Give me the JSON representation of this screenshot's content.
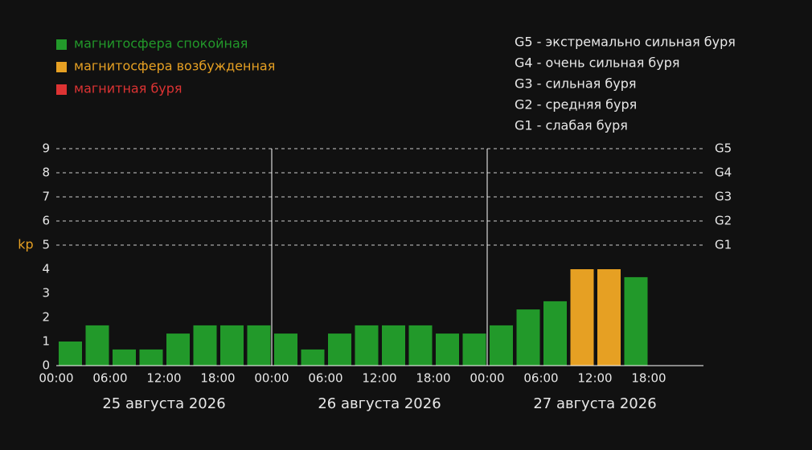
{
  "chart_data": {
    "type": "bar",
    "y_label": "kp",
    "y_label_color": "#e6a023",
    "legend": [
      {
        "name": "магнитосфера спокойная",
        "color": "#22992a"
      },
      {
        "name": "магнитосфера возбужденная",
        "color": "#e6a023"
      },
      {
        "name": "магнитная буря",
        "color": "#dd3333"
      }
    ],
    "storm_legend": [
      "G5 - экстремально сильная буря",
      "G4 - очень сильная буря",
      "G3 - сильная буря",
      "G2 - средняя буря",
      "G1 - слабая буря"
    ],
    "days": [
      "25 августа 2026",
      "26 августа 2026",
      "27 августа 2026"
    ],
    "time_labels": [
      "00:00",
      "06:00",
      "12:00",
      "18:00"
    ],
    "values": [
      1,
      1.67,
      0.67,
      0.67,
      1.33,
      1.67,
      1.67,
      1.67,
      1.33,
      0.67,
      1.33,
      1.67,
      1.67,
      1.67,
      1.33,
      1.33,
      1.67,
      2.33,
      2.67,
      4,
      4,
      3.67,
      null,
      null
    ],
    "bar_levels": [
      0,
      0,
      0,
      0,
      0,
      0,
      0,
      0,
      0,
      0,
      0,
      0,
      0,
      0,
      0,
      0,
      0,
      0,
      0,
      1,
      1,
      0,
      null,
      null
    ],
    "ylim": [
      0,
      9
    ],
    "yticks": [
      0,
      1,
      2,
      3,
      4,
      5,
      6,
      7,
      8,
      9
    ],
    "storm_levels": [
      {
        "value": 5,
        "label": "G1"
      },
      {
        "value": 6,
        "label": "G2"
      },
      {
        "value": 7,
        "label": "G3"
      },
      {
        "value": 8,
        "label": "G4"
      },
      {
        "value": 9,
        "label": "G5"
      }
    ]
  }
}
